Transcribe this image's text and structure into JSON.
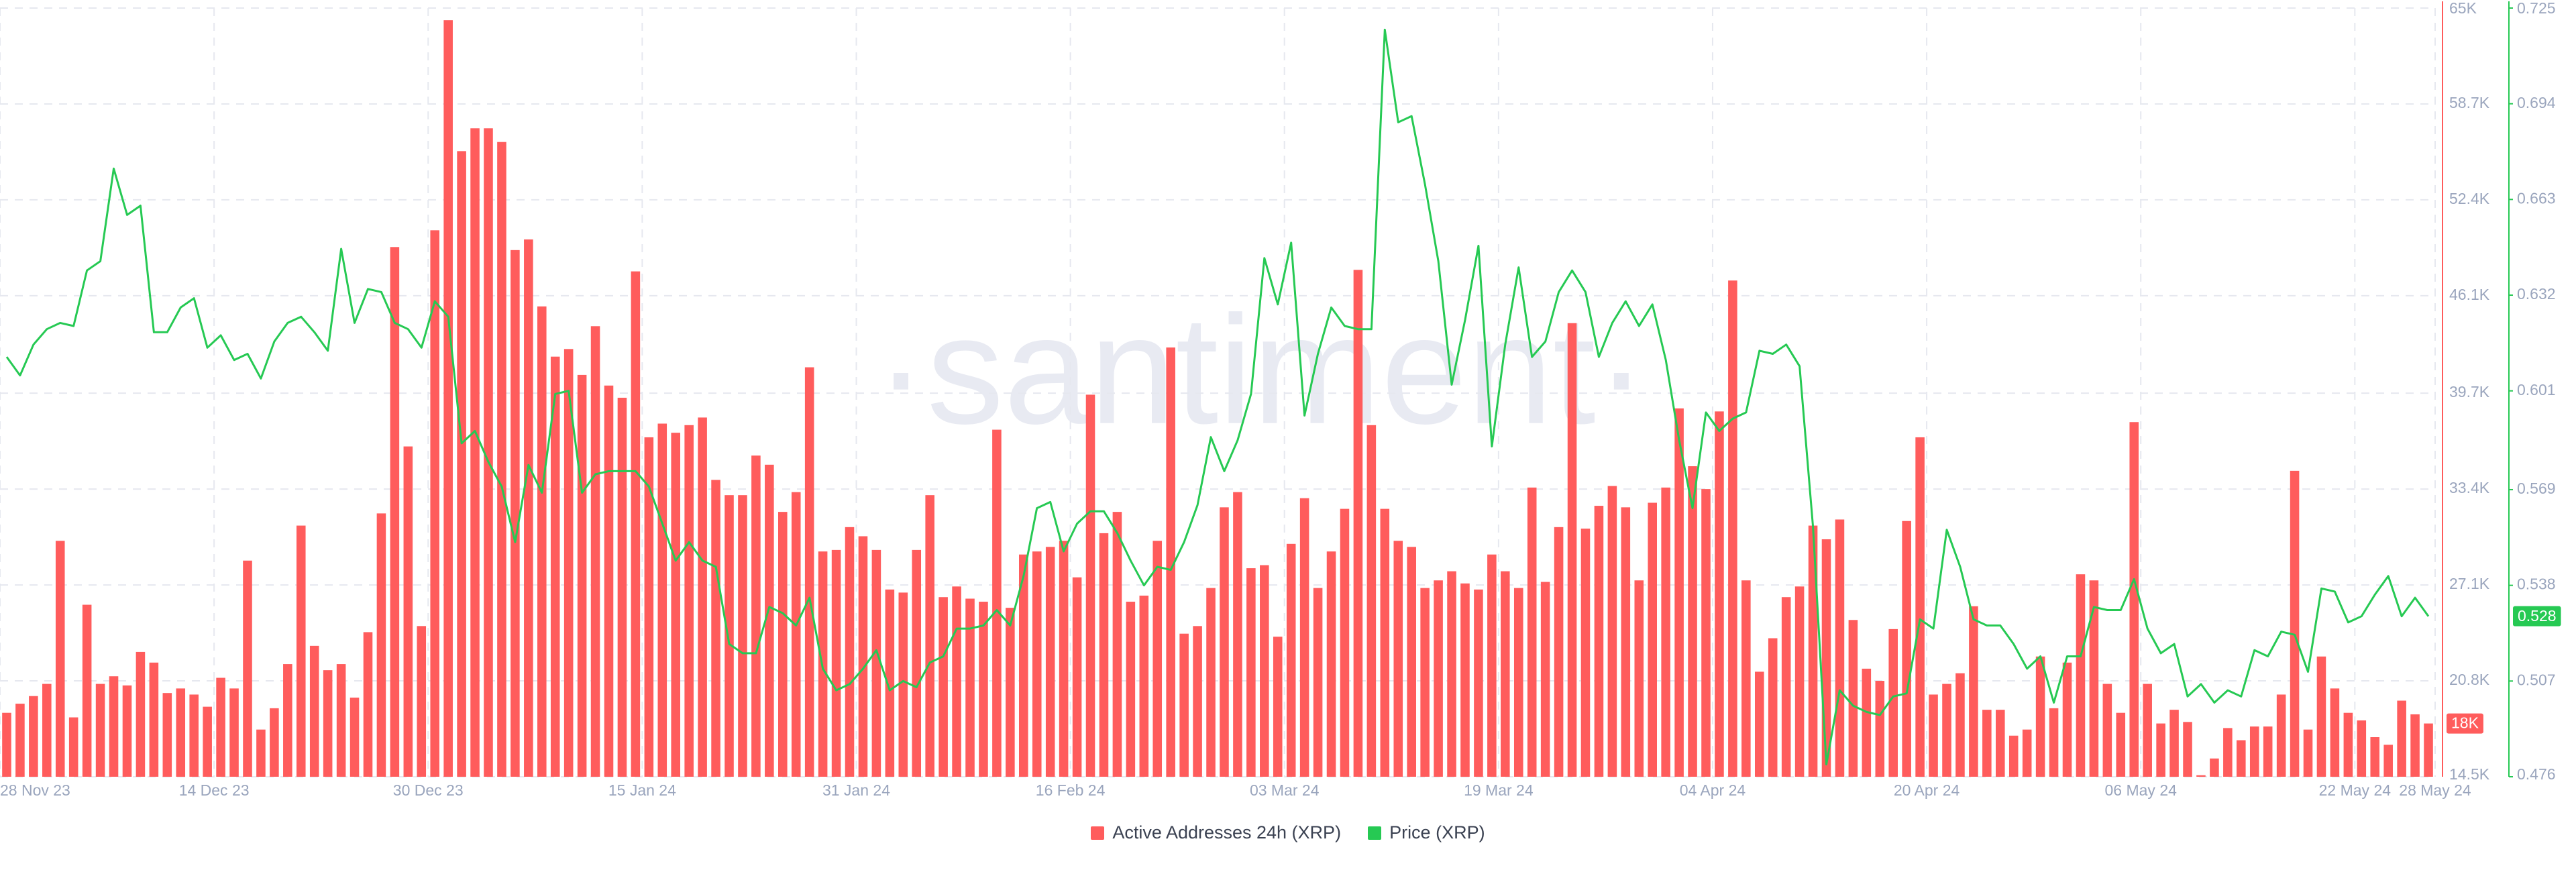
{
  "chart_data": {
    "type": "bar-line",
    "watermark": "·santiment·",
    "x": [
      "2023-11-28",
      "2023-11-29",
      "2023-11-30",
      "2023-12-01",
      "2023-12-02",
      "2023-12-03",
      "2023-12-04",
      "2023-12-05",
      "2023-12-06",
      "2023-12-07",
      "2023-12-08",
      "2023-12-09",
      "2023-12-10",
      "2023-12-11",
      "2023-12-12",
      "2023-12-13",
      "2023-12-14",
      "2023-12-15",
      "2023-12-16",
      "2023-12-17",
      "2023-12-18",
      "2023-12-19",
      "2023-12-20",
      "2023-12-21",
      "2023-12-22",
      "2023-12-23",
      "2023-12-24",
      "2023-12-25",
      "2023-12-26",
      "2023-12-27",
      "2023-12-28",
      "2023-12-29",
      "2023-12-30",
      "2023-12-31",
      "2024-01-01",
      "2024-01-02",
      "2024-01-03",
      "2024-01-04",
      "2024-01-05",
      "2024-01-06",
      "2024-01-07",
      "2024-01-08",
      "2024-01-09",
      "2024-01-10",
      "2024-01-11",
      "2024-01-12",
      "2024-01-13",
      "2024-01-14",
      "2024-01-15",
      "2024-01-16",
      "2024-01-17",
      "2024-01-18",
      "2024-01-19",
      "2024-01-20",
      "2024-01-21",
      "2024-01-22",
      "2024-01-23",
      "2024-01-24",
      "2024-01-25",
      "2024-01-26",
      "2024-01-27",
      "2024-01-28",
      "2024-01-29",
      "2024-01-30",
      "2024-01-31",
      "2024-02-01",
      "2024-02-02",
      "2024-02-03",
      "2024-02-04",
      "2024-02-05",
      "2024-02-06",
      "2024-02-07",
      "2024-02-08",
      "2024-02-09",
      "2024-02-10",
      "2024-02-11",
      "2024-02-12",
      "2024-02-13",
      "2024-02-14",
      "2024-02-15",
      "2024-02-16",
      "2024-02-17",
      "2024-02-18",
      "2024-02-19",
      "2024-02-20",
      "2024-02-21",
      "2024-02-22",
      "2024-02-23",
      "2024-02-24",
      "2024-02-25",
      "2024-02-26",
      "2024-02-27",
      "2024-02-28",
      "2024-02-29",
      "2024-03-01",
      "2024-03-02",
      "2024-03-03",
      "2024-03-04",
      "2024-03-05",
      "2024-03-06",
      "2024-03-07",
      "2024-03-08",
      "2024-03-09",
      "2024-03-10",
      "2024-03-11",
      "2024-03-12",
      "2024-03-13",
      "2024-03-14",
      "2024-03-15",
      "2024-03-16",
      "2024-03-17",
      "2024-03-18",
      "2024-03-19",
      "2024-03-20",
      "2024-03-21",
      "2024-03-22",
      "2024-03-23",
      "2024-03-24",
      "2024-03-25",
      "2024-03-26",
      "2024-03-27",
      "2024-03-28",
      "2024-03-29",
      "2024-03-30",
      "2024-03-31",
      "2024-04-01",
      "2024-04-02",
      "2024-04-03",
      "2024-04-04",
      "2024-04-05",
      "2024-04-06",
      "2024-04-07",
      "2024-04-08",
      "2024-04-09",
      "2024-04-10",
      "2024-04-11",
      "2024-04-12",
      "2024-04-13",
      "2024-04-14",
      "2024-04-15",
      "2024-04-16",
      "2024-04-17",
      "2024-04-18",
      "2024-04-19",
      "2024-04-20",
      "2024-04-21",
      "2024-04-22",
      "2024-04-23",
      "2024-04-24",
      "2024-04-25",
      "2024-04-26",
      "2024-04-27",
      "2024-04-28",
      "2024-04-29",
      "2024-04-30",
      "2024-05-01",
      "2024-05-02",
      "2024-05-03",
      "2024-05-04",
      "2024-05-05",
      "2024-05-06",
      "2024-05-07",
      "2024-05-08",
      "2024-05-09",
      "2024-05-10",
      "2024-05-11",
      "2024-05-12",
      "2024-05-13",
      "2024-05-14",
      "2024-05-15",
      "2024-05-16",
      "2024-05-17",
      "2024-05-18",
      "2024-05-19",
      "2024-05-20",
      "2024-05-21",
      "2024-05-22",
      "2024-05-23",
      "2024-05-24",
      "2024-05-25",
      "2024-05-26",
      "2024-05-27"
    ],
    "xlim": [
      "2023-11-28",
      "2024-05-28"
    ],
    "xticks": [
      {
        "value": "2023-11-28",
        "label": "28 Nov 23"
      },
      {
        "value": "2023-12-14",
        "label": "14 Dec 23"
      },
      {
        "value": "2023-12-30",
        "label": "30 Dec 23"
      },
      {
        "value": "2024-01-15",
        "label": "15 Jan 24"
      },
      {
        "value": "2024-01-31",
        "label": "31 Jan 24"
      },
      {
        "value": "2024-02-16",
        "label": "16 Feb 24"
      },
      {
        "value": "2024-03-03",
        "label": "03 Mar 24"
      },
      {
        "value": "2024-03-19",
        "label": "19 Mar 24"
      },
      {
        "value": "2024-04-04",
        "label": "04 Apr 24"
      },
      {
        "value": "2024-04-20",
        "label": "20 Apr 24"
      },
      {
        "value": "2024-05-06",
        "label": "06 May 24"
      },
      {
        "value": "2024-05-22",
        "label": "22 May 24"
      },
      {
        "value": "2024-05-28",
        "label": "28 May 24"
      }
    ],
    "ylim": [
      14500,
      65000
    ],
    "yticks": [
      {
        "value": 14500,
        "label": "14.5K"
      },
      {
        "value": 20800,
        "label": "20.8K"
      },
      {
        "value": 27100,
        "label": "27.1K"
      },
      {
        "value": 33400,
        "label": "33.4K"
      },
      {
        "value": 39700,
        "label": "39.7K"
      },
      {
        "value": 46100,
        "label": "46.1K"
      },
      {
        "value": 52400,
        "label": "52.4K"
      },
      {
        "value": 58700,
        "label": "58.7K"
      },
      {
        "value": 65000,
        "label": "65K"
      }
    ],
    "y2lim": [
      0.476,
      0.725
    ],
    "y2ticks": [
      0.476,
      0.507,
      0.538,
      0.569,
      0.601,
      0.632,
      0.663,
      0.694,
      0.725
    ],
    "grid": true,
    "series": [
      {
        "name": "Active Addresses 24h (XRP)",
        "color": "#ff5c5c",
        "type": "bar",
        "values": [
          18700,
          19300,
          19800,
          20600,
          30000,
          18400,
          25800,
          20600,
          21100,
          20500,
          22700,
          22000,
          20000,
          20300,
          19900,
          19100,
          21000,
          20300,
          28700,
          17600,
          19000,
          21900,
          31000,
          23100,
          21500,
          21900,
          19700,
          24000,
          31800,
          49300,
          36200,
          24400,
          50400,
          64200,
          55600,
          57100,
          57100,
          56200,
          49100,
          49800,
          45400,
          42100,
          42600,
          40900,
          44100,
          40200,
          39400,
          47700,
          36800,
          37700,
          37100,
          37600,
          38100,
          34000,
          33000,
          33000,
          35600,
          35000,
          31900,
          33200,
          41400,
          29300,
          29400,
          30900,
          30300,
          29400,
          26800,
          26600,
          29400,
          33000,
          26300,
          27000,
          26200,
          26000,
          37300,
          25600,
          29100,
          29300,
          29600,
          30000,
          27600,
          39600,
          30500,
          31900,
          26000,
          26400,
          30000,
          42700,
          23900,
          24400,
          26900,
          32200,
          33200,
          28200,
          28400,
          23700,
          29800,
          32800,
          26900,
          29300,
          32100,
          47800,
          37600,
          32100,
          30000,
          29600,
          26900,
          27400,
          28000,
          27200,
          26800,
          29100,
          28000,
          26900,
          33500,
          27300,
          30900,
          44300,
          30800,
          32300,
          33600,
          32200,
          27400,
          32500,
          33500,
          38700,
          34900,
          33400,
          38500,
          47100,
          27400,
          21400,
          23600,
          26300,
          27000,
          31000,
          30100,
          31400,
          24800,
          21600,
          20800,
          24200,
          31300,
          36800,
          19900,
          20600,
          21300,
          25700,
          18900,
          18900,
          17200,
          17600,
          22400,
          19000,
          22000,
          27800,
          27400,
          20600,
          18700,
          37800,
          20600,
          18000,
          18900,
          18100,
          14600,
          15700,
          17700,
          16900,
          17800,
          17800,
          19900,
          34600,
          17600,
          22400,
          20300,
          18700,
          18200,
          17100,
          16600,
          19500,
          18600,
          18000
        ],
        "value_labels": [
          null,
          null,
          null,
          null,
          null,
          null,
          null,
          null,
          null,
          null,
          null,
          null,
          null,
          null,
          null,
          null,
          null,
          null,
          null,
          null,
          null,
          null,
          null,
          null,
          null,
          null,
          null,
          null,
          null,
          null,
          null,
          null,
          null,
          null,
          null,
          null,
          null,
          null,
          null,
          null,
          null,
          null,
          null,
          null,
          null,
          null,
          null,
          null,
          null,
          null,
          null,
          null,
          null,
          null,
          null,
          null,
          null,
          null,
          null,
          null,
          null,
          null,
          null,
          null,
          null,
          null,
          null,
          null,
          null,
          null,
          null,
          null,
          null,
          null,
          null,
          null,
          null,
          null,
          null,
          null,
          null,
          null,
          null,
          null,
          null,
          null,
          null,
          null,
          null,
          null,
          null,
          null,
          null,
          null,
          null,
          null,
          null,
          null,
          null,
          null,
          null,
          null,
          null,
          null,
          null,
          null,
          null,
          null,
          null,
          null,
          null,
          null,
          null,
          null,
          null,
          null,
          null,
          null,
          null,
          null,
          null,
          null,
          null,
          null,
          null,
          null,
          null,
          null,
          null,
          null,
          null,
          null,
          null,
          null,
          null,
          null,
          null,
          null,
          null,
          null,
          null,
          null,
          null,
          null,
          null,
          null,
          null,
          null,
          null,
          null,
          null,
          null,
          null,
          null,
          null,
          null,
          null,
          null,
          null,
          null,
          null,
          null,
          null,
          null,
          null,
          null,
          null,
          null,
          null,
          null,
          null,
          null,
          null,
          null,
          null,
          null,
          null,
          null,
          null,
          null,
          null,
          "18K"
        ]
      },
      {
        "name": "Price (XRP)",
        "color": "#26c953",
        "type": "line",
        "axis": "y2",
        "values": [
          0.612,
          0.606,
          0.616,
          0.621,
          0.623,
          0.622,
          0.64,
          0.643,
          0.673,
          0.658,
          0.661,
          0.62,
          0.62,
          0.628,
          0.631,
          0.615,
          0.619,
          0.611,
          0.613,
          0.605,
          0.617,
          0.623,
          0.625,
          0.62,
          0.614,
          0.647,
          0.623,
          0.634,
          0.633,
          0.623,
          0.621,
          0.615,
          0.63,
          0.625,
          0.584,
          0.588,
          0.578,
          0.57,
          0.552,
          0.577,
          0.568,
          0.6,
          0.601,
          0.568,
          0.574,
          0.575,
          0.575,
          0.575,
          0.57,
          0.558,
          0.546,
          0.552,
          0.546,
          0.544,
          0.519,
          0.516,
          0.516,
          0.531,
          0.529,
          0.525,
          0.534,
          0.511,
          0.504,
          0.506,
          0.511,
          0.517,
          0.504,
          0.507,
          0.505,
          0.513,
          0.515,
          0.524,
          0.524,
          0.525,
          0.53,
          0.525,
          0.541,
          0.563,
          0.565,
          0.549,
          0.558,
          0.562,
          0.562,
          0.555,
          0.546,
          0.538,
          0.544,
          0.543,
          0.552,
          0.564,
          0.586,
          0.575,
          0.585,
          0.6,
          0.644,
          0.629,
          0.649,
          0.593,
          0.613,
          0.628,
          0.622,
          0.621,
          0.621,
          0.718,
          0.688,
          0.69,
          0.668,
          0.643,
          0.603,
          0.624,
          0.648,
          0.583,
          0.616,
          0.641,
          0.612,
          0.617,
          0.633,
          0.64,
          0.633,
          0.612,
          0.623,
          0.63,
          0.622,
          0.629,
          0.611,
          0.585,
          0.563,
          0.594,
          0.588,
          0.592,
          0.594,
          0.614,
          0.613,
          0.616,
          0.609,
          0.557,
          0.48,
          0.504,
          0.499,
          0.497,
          0.496,
          0.502,
          0.503,
          0.527,
          0.524,
          0.556,
          0.544,
          0.527,
          0.525,
          0.525,
          0.519,
          0.511,
          0.515,
          0.5,
          0.515,
          0.515,
          0.531,
          0.53,
          0.53,
          0.54,
          0.524,
          0.516,
          0.519,
          0.502,
          0.506,
          0.5,
          0.504,
          0.502,
          0.517,
          0.515,
          0.523,
          0.522,
          0.51,
          0.537,
          0.536,
          0.526,
          0.528,
          0.535,
          0.541,
          0.528,
          0.534,
          0.528
        ],
        "value_labels": [
          null,
          null,
          null,
          null,
          null,
          null,
          null,
          null,
          null,
          null,
          null,
          null,
          null,
          null,
          null,
          null,
          null,
          null,
          null,
          null,
          null,
          null,
          null,
          null,
          null,
          null,
          null,
          null,
          null,
          null,
          null,
          null,
          null,
          null,
          null,
          null,
          null,
          null,
          null,
          null,
          null,
          null,
          null,
          null,
          null,
          null,
          null,
          null,
          null,
          null,
          null,
          null,
          null,
          null,
          null,
          null,
          null,
          null,
          null,
          null,
          null,
          null,
          null,
          null,
          null,
          null,
          null,
          null,
          null,
          null,
          null,
          null,
          null,
          null,
          null,
          null,
          null,
          null,
          null,
          null,
          null,
          null,
          null,
          null,
          null,
          null,
          null,
          null,
          null,
          null,
          null,
          null,
          null,
          null,
          null,
          null,
          null,
          null,
          null,
          null,
          null,
          null,
          null,
          null,
          null,
          null,
          null,
          null,
          null,
          null,
          null,
          null,
          null,
          null,
          null,
          null,
          null,
          null,
          null,
          null,
          null,
          null,
          null,
          null,
          null,
          null,
          null,
          null,
          null,
          null,
          null,
          null,
          null,
          null,
          null,
          null,
          null,
          null,
          null,
          null,
          null,
          null,
          null,
          null,
          null,
          null,
          null,
          null,
          null,
          null,
          null,
          null,
          null,
          null,
          null,
          null,
          null,
          null,
          null,
          null,
          null,
          null,
          null,
          null,
          null,
          null,
          null,
          null,
          null,
          null,
          null,
          null,
          null,
          null,
          null,
          null,
          null,
          null,
          null,
          null,
          null,
          "0.528"
        ]
      }
    ]
  }
}
